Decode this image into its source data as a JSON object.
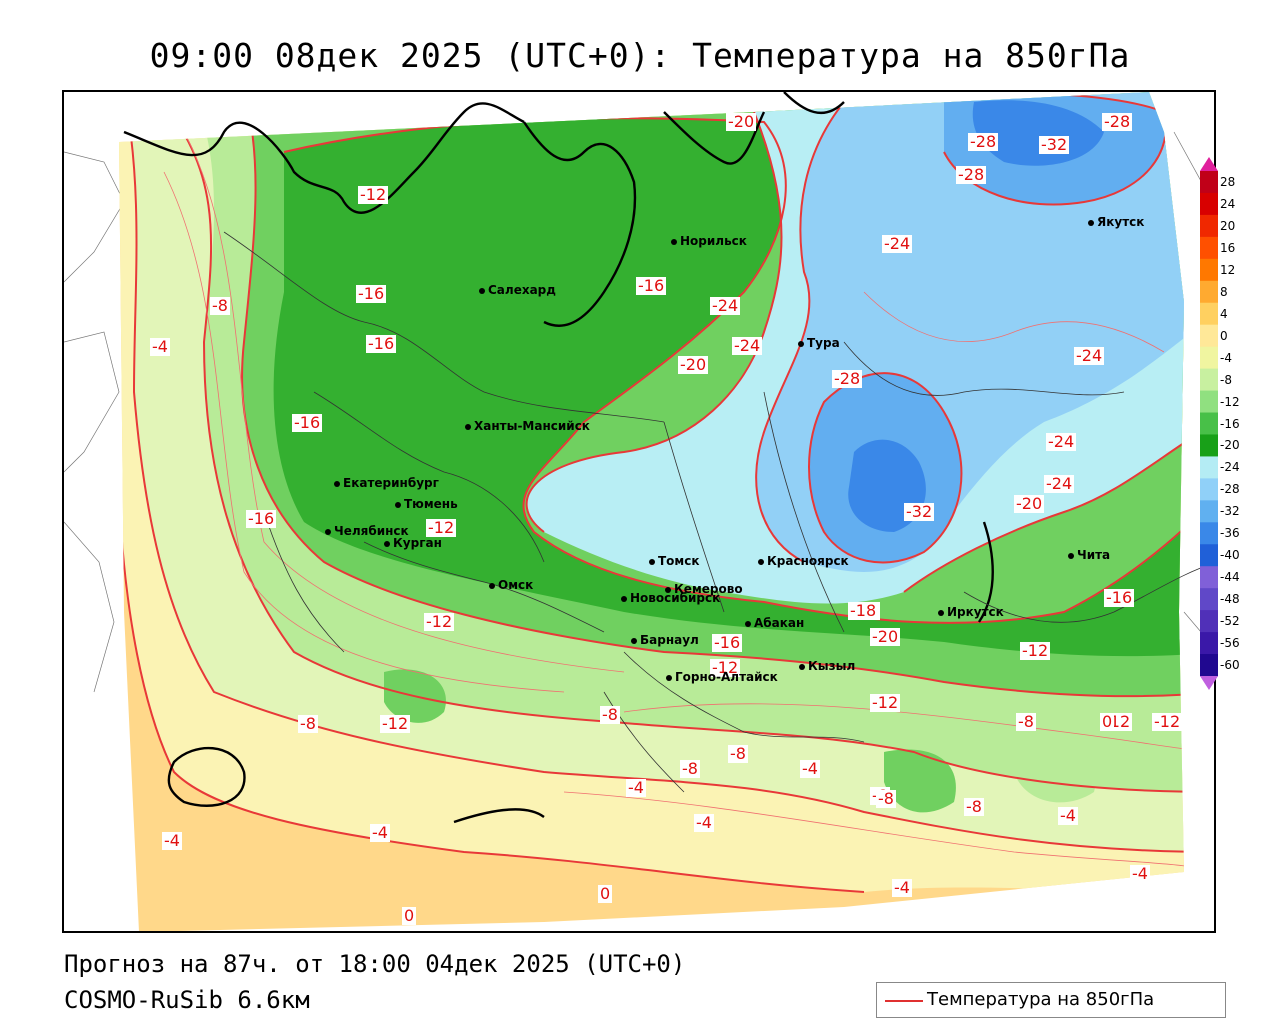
{
  "title": "09:00 08дек 2025 (UTC+0): Температура на 850гПа",
  "footer": {
    "forecast": "Прогноз на 87ч. от 18:00 04дек 2025 (UTC+0)",
    "model": "COSMO-RuSib 6.6км"
  },
  "legend": {
    "label": "Температура на 850гПа",
    "color": "#e03030"
  },
  "colorbar": {
    "ticks": [
      "28",
      "24",
      "20",
      "16",
      "12",
      "8",
      "4",
      "0",
      "-4",
      "-8",
      "-12",
      "-16",
      "-20",
      "-24",
      "-28",
      "-32",
      "-36",
      "-40",
      "-44",
      "-48",
      "-52",
      "-56",
      "-60"
    ],
    "colors": [
      "#c00018",
      "#d80000",
      "#f02800",
      "#ff5000",
      "#ff7800",
      "#ffaa30",
      "#ffd060",
      "#ffe898",
      "#f0f5a0",
      "#c8f0a0",
      "#90e080",
      "#48c048",
      "#18a018",
      "#b4ecf4",
      "#90d0f8",
      "#60b0f0",
      "#3a88e8",
      "#2060d8",
      "#8060d8",
      "#6048c8",
      "#5030b8",
      "#3a18a8",
      "#200890"
    ],
    "top_color": "#e0209c",
    "bottom_color": "#c060e0"
  },
  "cities": [
    {
      "name": "Норильск"
    },
    {
      "name": "Якутск"
    },
    {
      "name": "Салехард"
    },
    {
      "name": "Тура"
    },
    {
      "name": "Ханты-Мансийск"
    },
    {
      "name": "Екатеринбург"
    },
    {
      "name": "Тюмень"
    },
    {
      "name": "Челябинск"
    },
    {
      "name": "Курган"
    },
    {
      "name": "Омск"
    },
    {
      "name": "Новосибирск"
    },
    {
      "name": "Томск"
    },
    {
      "name": "Кемерово"
    },
    {
      "name": "Красноярск"
    },
    {
      "name": "Барнаул"
    },
    {
      "name": "Абакан"
    },
    {
      "name": "Горно-Алтайск"
    },
    {
      "name": "Кызыл"
    },
    {
      "name": "Иркутск"
    },
    {
      "name": "Чита"
    }
  ],
  "isotherm_labels": [
    "-20",
    "-28",
    "-32",
    "-28",
    "-28",
    "-12",
    "-24",
    "-16",
    "-16",
    "-16",
    "-24",
    "-8",
    "-4",
    "-24",
    "-16",
    "-20",
    "-28",
    "-24",
    "-24",
    "-16",
    "-24",
    "-32",
    "-20",
    "-20",
    "-12",
    "-18",
    "-12",
    "-16",
    "-20",
    "-16",
    "-16",
    "-12",
    "-12",
    "-12",
    "-12",
    "-8",
    "-8",
    "-12",
    "-4",
    "-8",
    "-8",
    "-8",
    "-4",
    "-8",
    "-8",
    "-4",
    "-4",
    "-8",
    "-4",
    "-4",
    "-4",
    "0",
    "0",
    "0",
    "-8",
    "-12",
    "-4"
  ]
}
